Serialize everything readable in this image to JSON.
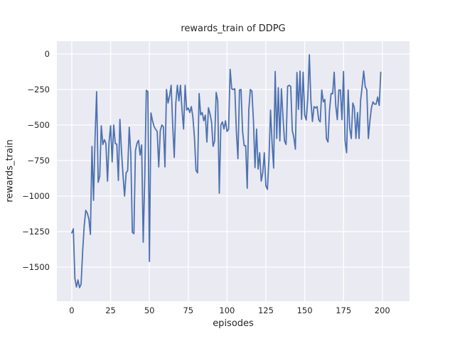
{
  "chart": {
    "title": "rewards_train of DDPG",
    "xlabel": "episodes",
    "ylabel": "rewards_train"
  },
  "chart_data": {
    "type": "line",
    "title": "rewards_train of DDPG",
    "xlabel": "episodes",
    "ylabel": "rewards_train",
    "legend": "none",
    "grid": "on",
    "style": "seaborn-darkgrid",
    "line_color": "#4c72b0",
    "panel_color": "#eaeaf2",
    "grid_color": "#ffffff",
    "text_color": "#262626",
    "xlim": [
      -9.6,
      217.5
    ],
    "ylim": [
      -1740,
      90
    ],
    "x_ticks": [
      0,
      25,
      50,
      75,
      100,
      125,
      150,
      175,
      200
    ],
    "x_tick_labels": [
      "0",
      "25",
      "50",
      "75",
      "100",
      "125",
      "150",
      "175",
      "200"
    ],
    "y_ticks": [
      0,
      -250,
      -500,
      -750,
      -1000,
      -1250,
      -1500
    ],
    "y_tick_labels": [
      "0",
      "−250",
      "−500",
      "−750",
      "−1000",
      "−1250",
      "−1500"
    ],
    "x_start": 0,
    "x_step": 1,
    "values": [
      -1260,
      -1230,
      -1580,
      -1640,
      -1590,
      -1645,
      -1620,
      -1390,
      -1210,
      -1100,
      -1120,
      -1160,
      -1270,
      -650,
      -1030,
      -587,
      -265,
      -903,
      -860,
      -505,
      -637,
      -603,
      -630,
      -895,
      -620,
      -505,
      -760,
      -500,
      -630,
      -635,
      -890,
      -460,
      -680,
      -855,
      -1000,
      -837,
      -820,
      -515,
      -700,
      -1255,
      -1265,
      -680,
      -628,
      -608,
      -712,
      -640,
      -1325,
      -870,
      -255,
      -265,
      -1460,
      -415,
      -470,
      -510,
      -530,
      -545,
      -795,
      -540,
      -500,
      -512,
      -795,
      -250,
      -345,
      -295,
      -220,
      -503,
      -728,
      -345,
      -220,
      -330,
      -220,
      -395,
      -528,
      -220,
      -395,
      -380,
      -412,
      -370,
      -445,
      -587,
      -820,
      -837,
      -278,
      -428,
      -412,
      -470,
      -430,
      -620,
      -378,
      -420,
      -478,
      -650,
      -612,
      -270,
      -330,
      -980,
      -500,
      -478,
      -528,
      -470,
      -545,
      -530,
      -108,
      -245,
      -250,
      -245,
      -545,
      -737,
      -253,
      -250,
      -545,
      -645,
      -645,
      -945,
      -395,
      -250,
      -262,
      -470,
      -800,
      -528,
      -810,
      -695,
      -895,
      -837,
      -695,
      -928,
      -953,
      -737,
      -395,
      -628,
      -803,
      -123,
      -595,
      -237,
      -612,
      -245,
      -437,
      -612,
      -637,
      -228,
      -220,
      -228,
      -537,
      -587,
      -670,
      -130,
      -390,
      -120,
      -460,
      -128,
      -430,
      -465,
      -310,
      -5,
      -330,
      -475,
      -370,
      -380,
      -370,
      -462,
      -478,
      -253,
      -337,
      -320,
      -595,
      -620,
      -395,
      -278,
      -280,
      -128,
      -362,
      -462,
      -253,
      -253,
      -462,
      -123,
      -612,
      -695,
      -253,
      -520,
      -595,
      -345,
      -378,
      -595,
      -412,
      -595,
      -328,
      -228,
      -120,
      -230,
      -253,
      -595,
      -470,
      -378,
      -337,
      -353,
      -353,
      -303,
      -362,
      -128
    ]
  }
}
